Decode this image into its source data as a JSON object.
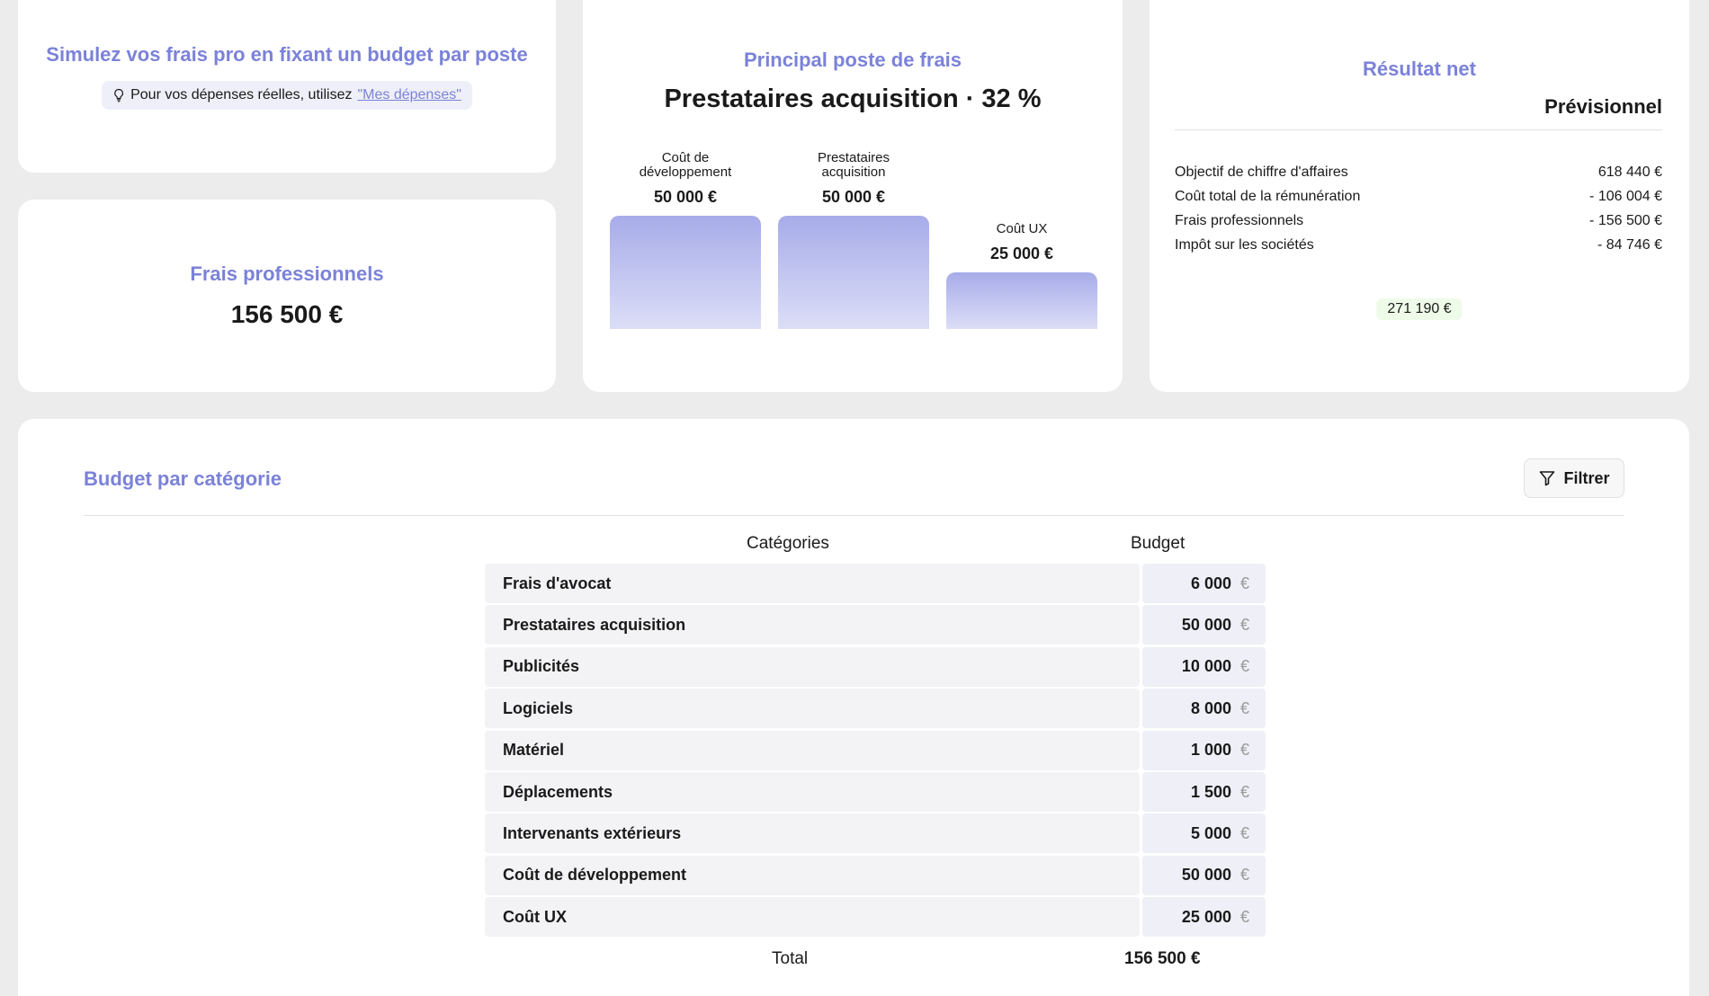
{
  "simulate_card": {
    "title": "Simulez vos frais pro en fixant un budget par poste",
    "hint_text": "Pour vos dépenses réelles, utilisez",
    "hint_link": "\"Mes dépenses\"",
    "hint_icon": "lightbulb-icon"
  },
  "frais_card": {
    "title": "Frais professionnels",
    "value": "156 500 €"
  },
  "principal_card": {
    "title": "Principal poste de frais",
    "headline": "Prestataires acquisition · 32 %"
  },
  "chart_data": {
    "type": "bar",
    "categories": [
      "Coût de développement",
      "Prestataires acquisition",
      "Coût UX"
    ],
    "category_lines": [
      [
        "Coût de",
        "développement"
      ],
      [
        "Prestataires",
        "acquisition"
      ],
      [
        "Coût UX"
      ]
    ],
    "values": [
      50000,
      50000,
      25000
    ],
    "value_labels": [
      "50 000 €",
      "50 000 €",
      "25 000 €"
    ],
    "ylim": [
      0,
      50000
    ],
    "grid": false,
    "colors": [
      "#a7ace9",
      "#dcdef7"
    ]
  },
  "result_card": {
    "title": "Résultat net",
    "column_header": "Prévisionnel",
    "rows": [
      {
        "label": "Objectif de chiffre d'affaires",
        "value": "618 440 €"
      },
      {
        "label": "Coût total de la rémunération",
        "value": "- 106 004 €"
      },
      {
        "label": "Frais professionnels",
        "value": "- 156 500 €"
      },
      {
        "label": "Impôt sur les sociétés",
        "value": "- 84 746 €"
      }
    ],
    "net_value": "271 190 €"
  },
  "budget_card": {
    "title": "Budget par catégorie",
    "filter_label": "Filtrer",
    "filter_icon": "filter-icon",
    "col_categories": "Catégories",
    "col_budget": "Budget",
    "currency": "€",
    "rows": [
      {
        "category": "Frais d'avocat",
        "amount": "6 000"
      },
      {
        "category": "Prestataires acquisition",
        "amount": "50 000"
      },
      {
        "category": "Publicités",
        "amount": "10 000"
      },
      {
        "category": "Logiciels",
        "amount": "8 000"
      },
      {
        "category": "Matériel",
        "amount": "1 000"
      },
      {
        "category": "Déplacements",
        "amount": "1 500"
      },
      {
        "category": "Intervenants extérieurs",
        "amount": "5 000"
      },
      {
        "category": "Coût de développement",
        "amount": "50 000"
      },
      {
        "category": "Coût UX",
        "amount": "25 000"
      }
    ],
    "total_label": "Total",
    "total_value": "156 500 €"
  },
  "colors": {
    "accent": "#7b82d8",
    "background": "#ececec",
    "net_badge": "#eefbe8"
  }
}
